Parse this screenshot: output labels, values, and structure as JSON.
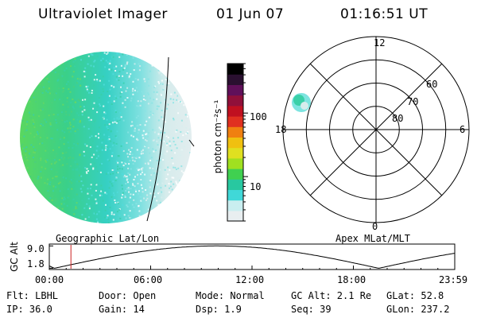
{
  "header": {
    "instrument": "Ultraviolet Imager",
    "date": "01 Jun 07",
    "time": "01:16:51 UT"
  },
  "colorbar": {
    "unit_label": "photon cm⁻²s⁻¹",
    "ticks": [
      "100",
      "10"
    ],
    "tick_values": [
      100,
      10
    ],
    "range": [
      2,
      600
    ],
    "scale": "log",
    "colors": [
      "#e8eef0",
      "#c9eef0",
      "#40d8d8",
      "#28c8a0",
      "#40d050",
      "#a0e020",
      "#e0e020",
      "#f0c010",
      "#f08010",
      "#e03020",
      "#c01020",
      "#90103a",
      "#60105a",
      "#2a1030",
      "#000000"
    ]
  },
  "left_image": {
    "label": "Geographic Lat/Lon"
  },
  "polar_plot": {
    "label": "Apex MLat/MLT",
    "mlt_labels": {
      "top": "12",
      "left": "18",
      "right": "6",
      "bottom": "0"
    },
    "mlat_labels": [
      "80",
      "70",
      "60"
    ],
    "mlat_values": [
      80,
      70,
      60
    ]
  },
  "altitude_plot": {
    "ylabel": "GC Alt",
    "y_ticks": [
      "9.0",
      "1.8"
    ],
    "y_values": [
      9.0,
      1.8
    ],
    "x_ticks": [
      "00:00",
      "06:00",
      "12:00",
      "18:00",
      "23:59"
    ],
    "marker_time": "01:16:51",
    "marker_color": "#cc2020"
  },
  "info": {
    "row1": {
      "flt": "Flt: LBHL",
      "door": "Door: Open",
      "mode": "Mode: Normal",
      "gcalt": "GC Alt: 2.1 Re",
      "glat": "GLat:  52.8"
    },
    "row2": {
      "ip": "IP: 36.0",
      "gain": "Gain: 14",
      "dsp": "Dsp:    1.9",
      "seq": "Seq: 39",
      "glon": "GLon: 237.2"
    }
  }
}
